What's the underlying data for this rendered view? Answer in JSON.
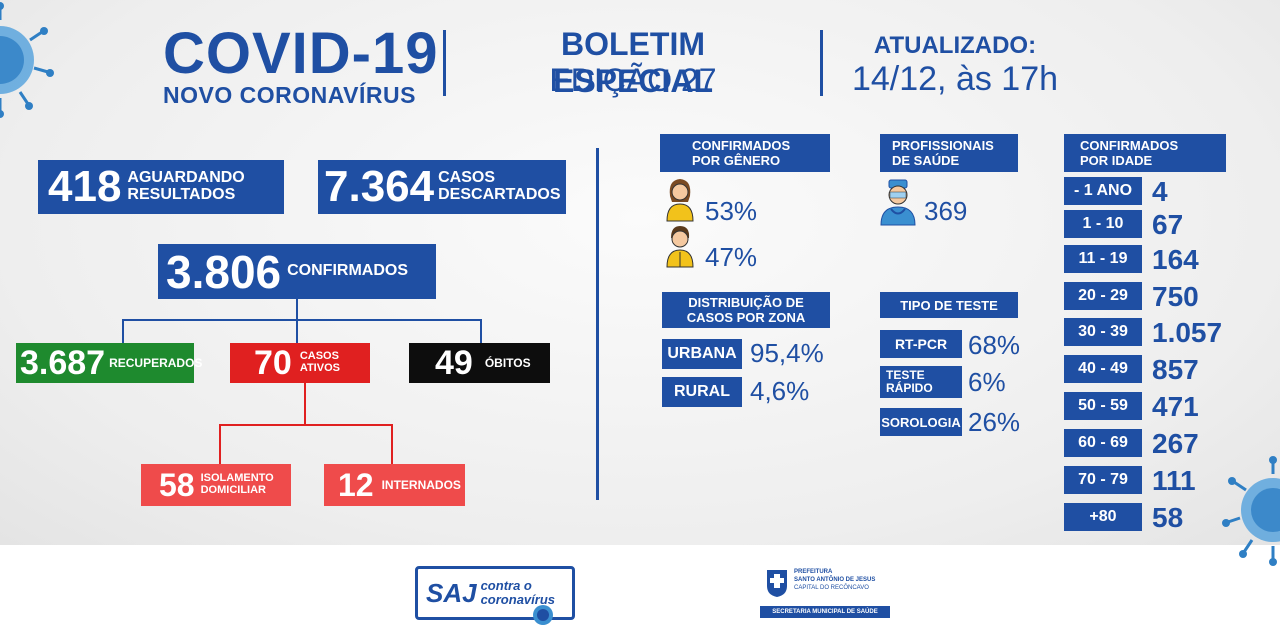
{
  "header": {
    "title": "COVID-19",
    "subtitle": "NOVO CORONAVÍRUS",
    "bulletin": "BOLETIM ESPECIAL",
    "edition": "EDIÇÃO 27",
    "updated_label": "ATUALIZADO:",
    "updated_date": "14/12, às 17h"
  },
  "summary": {
    "awaiting": {
      "value": "418",
      "label_line1": "AGUARDANDO",
      "label_line2": "RESULTADOS"
    },
    "discarded": {
      "value": "7.364",
      "label_line1": "CASOS",
      "label_line2": "DESCARTADOS"
    },
    "confirmed": {
      "value": "3.806",
      "label": "CONFIRMADOS"
    },
    "recovered": {
      "value": "3.687",
      "label": "RECUPERADOS"
    },
    "active": {
      "value": "70",
      "label_line1": "CASOS",
      "label_line2": "ATIVOS"
    },
    "deaths": {
      "value": "49",
      "label": "ÓBITOS"
    },
    "home_isolation": {
      "value": "58",
      "label_line1": "ISOLAMENTO",
      "label_line2": "DOMICILIAR"
    },
    "hospitalized": {
      "value": "12",
      "label": "INTERNADOS"
    }
  },
  "gender": {
    "title_line1": "CONFIRMADOS",
    "title_line2": "POR GÊNERO",
    "female_pct": "53%",
    "male_pct": "47%"
  },
  "health_professionals": {
    "title_line1": "PROFISSIONAIS",
    "title_line2": "DE SAÚDE",
    "value": "369"
  },
  "zone": {
    "title_line1": "DISTRIBUIÇÃO DE",
    "title_line2": "CASOS POR ZONA",
    "rows": [
      {
        "label": "URBANA",
        "value": "95,4%"
      },
      {
        "label": "RURAL",
        "value": "4,6%"
      }
    ]
  },
  "test_type": {
    "title": "TIPO DE TESTE",
    "rows": [
      {
        "label": "RT-PCR",
        "value": "68%"
      },
      {
        "label_line1": "TESTE",
        "label_line2": "RÁPIDO",
        "value": "6%"
      },
      {
        "label": "SOROLOGIA",
        "value": "26%"
      }
    ]
  },
  "age": {
    "title_line1": "CONFIRMADOS",
    "title_line2": "POR IDADE",
    "rows": [
      {
        "label": "- 1 ANO",
        "value": "4"
      },
      {
        "label": "1 - 10",
        "value": "67"
      },
      {
        "label": "11 - 19",
        "value": "164"
      },
      {
        "label": "20 - 29",
        "value": "750"
      },
      {
        "label": "30 - 39",
        "value": "1.057"
      },
      {
        "label": "40 - 49",
        "value": "857"
      },
      {
        "label": "50 - 59",
        "value": "471"
      },
      {
        "label": "60 - 69",
        "value": "267"
      },
      {
        "label": "70 - 79",
        "value": "111"
      },
      {
        "label": "+80",
        "value": "58"
      }
    ]
  },
  "footer": {
    "campaign_logo": {
      "line1": "SAJ",
      "line2": "contra o",
      "line3": "coronavírus"
    },
    "city_logo": {
      "line1": "PREFEITURA",
      "line2": "SANTO ANTÔNIO DE JESUS",
      "line3": "CAPITAL DO RECÔNCAVO",
      "line4": "SECRETARIA MUNICIPAL DE SAÚDE"
    }
  },
  "colors": {
    "brand_blue": "#1f4fa3",
    "green": "#1e8a2e",
    "red": "#e02020",
    "light_red": "#ef4b4b",
    "black": "#0d0d0d",
    "virus_blue": "#3a8fd0"
  }
}
